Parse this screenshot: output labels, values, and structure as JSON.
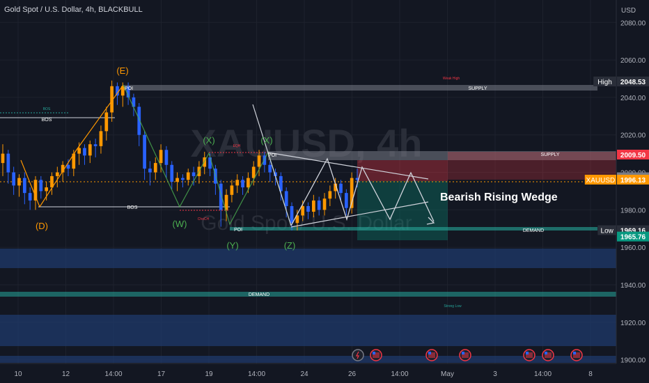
{
  "header": {
    "title": "Gold Spot / U.S. Dollar, 4h, BLACKBULL"
  },
  "watermark": {
    "symbol": "XAUUSD, 4h",
    "description": "Gold Spot / U.S. Dollar"
  },
  "axis": {
    "currency": "USD"
  },
  "annotations": {
    "e": "(E)",
    "d": "(D)",
    "x": "(X)",
    "w": "(W)",
    "y": "(Y)",
    "z": "(Z)",
    "bos": "BOS",
    "choch": "ChoCH",
    "eqh": "EQH",
    "poi": "POI",
    "weak_high": "Weak High",
    "supply": "SUPPLY",
    "demand": "DEMAND",
    "strong_low": "Strong Low",
    "pattern": "Bearish Rising Wedge"
  },
  "colors": {
    "bull": "#ff9800",
    "bear": "#2962ff",
    "background": "#131722",
    "grid": "#1e222d",
    "axis_text": "#b2b5be"
  },
  "chart_data": {
    "type": "candlestick",
    "symbol": "XAUUSD",
    "timeframe": "4h",
    "ylim": [
      1898,
      2092
    ],
    "y_ticks": [
      1900,
      1920,
      1940,
      1960,
      1980,
      2000,
      2020,
      2040,
      2060,
      2080
    ],
    "y_tick_labels": [
      "1900.00",
      "1920.00",
      "1940.00",
      "1960.00",
      "1980.00",
      "2000.00",
      "2020.00",
      "2040.00",
      "2060.00",
      "2080.00"
    ],
    "x_tick_labels": [
      "10",
      "12",
      "14:00",
      "17",
      "19",
      "14:00",
      "24",
      "26",
      "14:00",
      "May",
      "3",
      "14:00",
      "8"
    ],
    "price_labels": [
      {
        "label": "High",
        "value": "2048.53",
        "color": "#ffffff",
        "bg": "#2a2e39"
      },
      {
        "label": "",
        "value": "2009.50",
        "color": "#ffffff",
        "bg": "#f23645"
      },
      {
        "label": "",
        "value": "1997.41",
        "color": "#ffffff",
        "bg": "#787b86"
      },
      {
        "label": "XAUUSD",
        "value": "1996.13",
        "color": "#ffffff",
        "bg": "#ff9800"
      },
      {
        "label": "Low",
        "value": "1969.16",
        "color": "#ffffff",
        "bg": "#2a2e39"
      },
      {
        "label": "",
        "value": "1965.76",
        "color": "#ffffff",
        "bg": "#089981"
      }
    ],
    "candles": [
      [
        2005,
        2010,
        2002,
        2015,
        1998
      ],
      [
        2010,
        2000,
        1996,
        2012,
        1994
      ],
      [
        2000,
        1993,
        1990,
        2003,
        1988
      ],
      [
        1993,
        1997,
        1989,
        1999,
        1987
      ],
      [
        1997,
        1989,
        1985,
        2000,
        1983
      ],
      [
        1989,
        1985,
        1981,
        1992,
        1980
      ],
      [
        1985,
        1996,
        1982,
        1998,
        1980
      ],
      [
        1996,
        1990,
        1987,
        1998,
        1986
      ],
      [
        1990,
        1992,
        1987,
        1995,
        1985
      ],
      [
        1992,
        1998,
        1989,
        2000,
        1988
      ],
      [
        1998,
        2000,
        1994,
        2003,
        1992
      ],
      [
        2000,
        2004,
        1997,
        2006,
        1995
      ],
      [
        2004,
        2002,
        1999,
        2007,
        1998
      ],
      [
        2002,
        2010,
        2000,
        2012,
        1998
      ],
      [
        2010,
        2013,
        2006,
        2016,
        2004
      ],
      [
        2013,
        2009,
        2006,
        2015,
        2004
      ],
      [
        2009,
        2015,
        2006,
        2017,
        2005
      ],
      [
        2015,
        2014,
        2010,
        2018,
        2008
      ],
      [
        2014,
        2022,
        2011,
        2025,
        2010
      ],
      [
        2022,
        2032,
        2019,
        2035,
        2017
      ],
      [
        2032,
        2046,
        2029,
        2049,
        2027
      ],
      [
        2046,
        2041,
        2038,
        2048,
        2036
      ],
      [
        2041,
        2046,
        2037,
        2048,
        2035
      ],
      [
        2046,
        2040,
        2037,
        2048,
        2036
      ],
      [
        2040,
        2035,
        2031,
        2042,
        2030
      ],
      [
        2035,
        2020,
        2016,
        2037,
        2014
      ],
      [
        2020,
        2002,
        1998,
        2022,
        1996
      ],
      [
        2002,
        2000,
        1995,
        2006,
        1993
      ],
      [
        2000,
        2005,
        1997,
        2008,
        1996
      ],
      [
        2005,
        2012,
        2002,
        2015,
        2000
      ],
      [
        2012,
        2004,
        1999,
        2014,
        1997
      ],
      [
        2004,
        1995,
        1992,
        2006,
        1991
      ],
      [
        1995,
        1997,
        1992,
        2000,
        1990
      ],
      [
        1997,
        1996,
        1993,
        1999,
        1992
      ],
      [
        1996,
        2000,
        1994,
        2002,
        1993
      ],
      [
        2000,
        1998,
        1994,
        2003,
        1993
      ],
      [
        1998,
        2003,
        1995,
        2006,
        1994
      ],
      [
        2003,
        2008,
        2001,
        2011,
        1999
      ],
      [
        2008,
        2002,
        1999,
        2010,
        1998
      ],
      [
        2002,
        1994,
        1990,
        2004,
        1988
      ],
      [
        1994,
        1980,
        1975,
        1996,
        1971
      ],
      [
        1980,
        1988,
        1976,
        1991,
        1974
      ],
      [
        1988,
        1993,
        1985,
        1996,
        1984
      ],
      [
        1993,
        1996,
        1990,
        1999,
        1989
      ],
      [
        1996,
        1992,
        1989,
        1998,
        1988
      ],
      [
        1992,
        1997,
        1990,
        2000,
        1989
      ],
      [
        1997,
        2003,
        1994,
        2006,
        1993
      ],
      [
        2003,
        2009,
        2000,
        2012,
        1998
      ],
      [
        2009,
        2004,
        2001,
        2011,
        2000
      ],
      [
        2004,
        2000,
        1996,
        2006,
        1995
      ],
      [
        2000,
        1998,
        1994,
        2002,
        1993
      ],
      [
        1998,
        1990,
        1987,
        2000,
        1985
      ],
      [
        1990,
        1982,
        1978,
        1992,
        1976
      ],
      [
        1982,
        1973,
        1970,
        1984,
        1969
      ],
      [
        1973,
        1977,
        1970,
        1980,
        1969
      ],
      [
        1977,
        1982,
        1975,
        1985,
        1974
      ],
      [
        1982,
        1979,
        1976,
        1984,
        1975
      ],
      [
        1979,
        1985,
        1977,
        1988,
        1976
      ],
      [
        1985,
        1980,
        1978,
        1987,
        1977
      ],
      [
        1980,
        1986,
        1978,
        1989,
        1977
      ],
      [
        1986,
        1990,
        1983,
        1993,
        1982
      ],
      [
        1990,
        1994,
        1987,
        1997,
        1986
      ],
      [
        1994,
        1989,
        1986,
        1996,
        1985
      ],
      [
        1989,
        1981,
        1978,
        1991,
        1977
      ],
      [
        1981,
        1997,
        1979,
        2000,
        1978
      ],
      [
        1997,
        1996,
        1993,
        2002,
        1992
      ]
    ],
    "events": [
      {
        "kind": "flash",
        "x_index": 0
      },
      {
        "kind": "us",
        "x_index": 1
      },
      {
        "kind": "us",
        "x_index": 2
      },
      {
        "kind": "us",
        "x_index": 3
      },
      {
        "kind": "us",
        "x_index": 4
      },
      {
        "kind": "us",
        "x_index": 5
      },
      {
        "kind": "us",
        "x_index": 6
      }
    ]
  }
}
